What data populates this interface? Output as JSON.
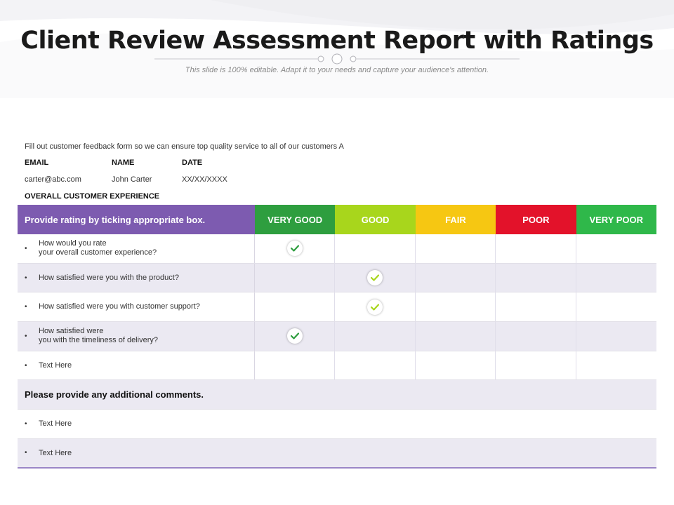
{
  "title": "Client Review Assessment Report with Ratings",
  "subtitle": "This slide is 100% editable. Adapt it to your needs and capture your audience's attention.",
  "intro": "Fill out customer feedback form so we can ensure top quality service to all of our customers A",
  "info": {
    "headers": [
      "EMAIL",
      "NAME",
      "DATE"
    ],
    "values": [
      "carter@abc.com",
      "John Carter",
      "XX/XX/XXXX"
    ]
  },
  "overall_label": "OVERALL CUSTOMER EXPERIENCE",
  "table": {
    "question_header": "Provide rating by ticking appropriate box.",
    "ratings": [
      {
        "label": "VERY GOOD",
        "color": "#2e9e3f"
      },
      {
        "label": "GOOD",
        "color": "#a8d61c"
      },
      {
        "label": "FAIR",
        "color": "#f6c712"
      },
      {
        "label": "POOR",
        "color": "#e3122a"
      },
      {
        "label": "VERY POOR",
        "color": "#2fb84a"
      }
    ],
    "questions": [
      {
        "lines": [
          "How would you rate",
          "your overall customer experience?"
        ],
        "rating": "VERY GOOD"
      },
      {
        "lines": [
          "How satisfied were you with the product?"
        ],
        "rating": "GOOD"
      },
      {
        "lines": [
          "How satisfied were you with customer support?"
        ],
        "rating": "GOOD"
      },
      {
        "lines": [
          "How satisfied were",
          "you with the timeliness of delivery?"
        ],
        "rating": "VERY GOOD"
      },
      {
        "lines": [
          "Text Here"
        ],
        "rating": null
      }
    ]
  },
  "comments_label": "Please provide any additional comments.",
  "comment_lines": [
    "Text Here",
    "Text Here"
  ],
  "icons": {
    "check": "check-icon",
    "bullet": "•"
  }
}
